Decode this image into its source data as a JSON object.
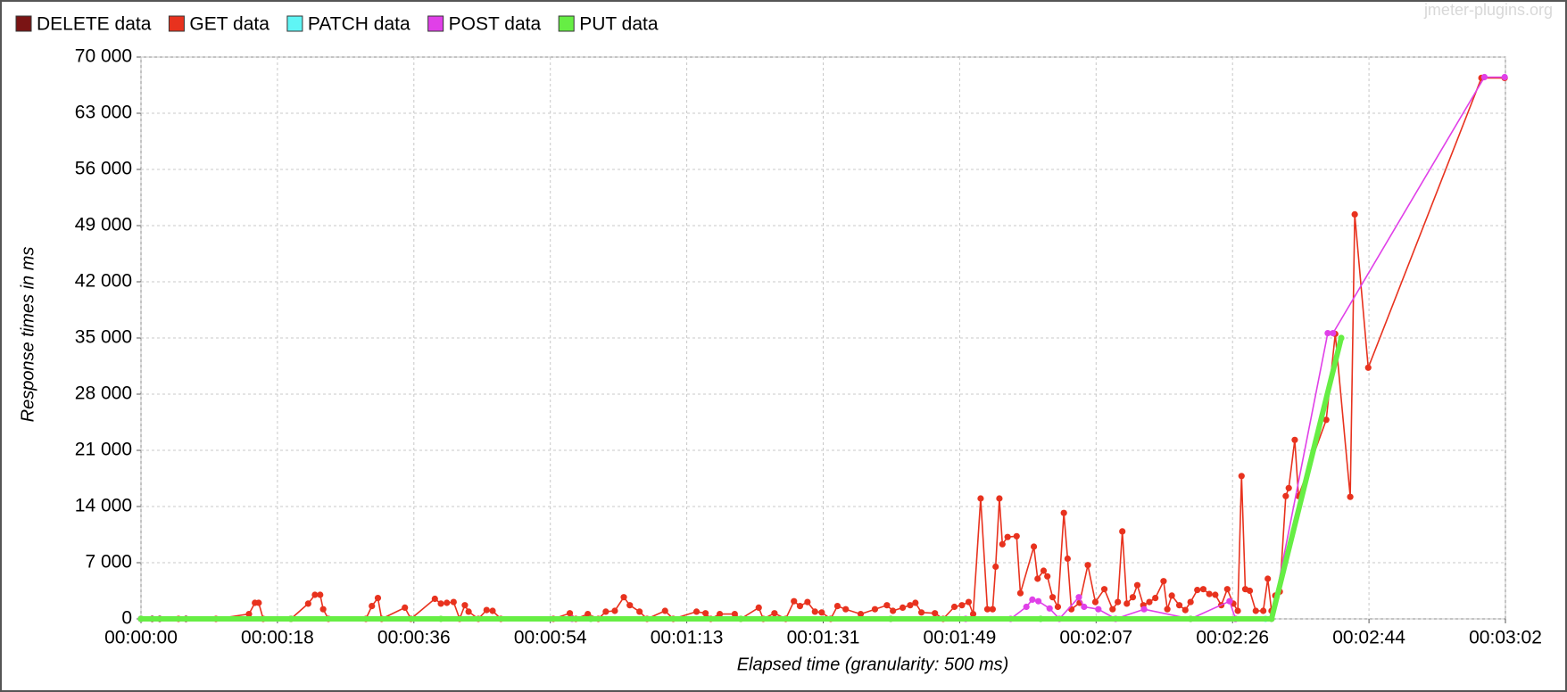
{
  "chart_data": {
    "type": "line",
    "watermark": "jmeter-plugins.org",
    "x_label": "Elapsed time (granularity: 500 ms)",
    "y_label": "Response times in ms",
    "grid": true,
    "legend": "top-left",
    "xlim": [
      0,
      182
    ],
    "xticks": [
      {
        "value": 0,
        "label": "00:00:00"
      },
      {
        "value": 18.2,
        "label": "00:00:18"
      },
      {
        "value": 36.4,
        "label": "00:00:36"
      },
      {
        "value": 54.6,
        "label": "00:00:54"
      },
      {
        "value": 72.8,
        "label": "00:01:13"
      },
      {
        "value": 91,
        "label": "00:01:31"
      },
      {
        "value": 109.2,
        "label": "00:01:49"
      },
      {
        "value": 127.4,
        "label": "00:02:07"
      },
      {
        "value": 145.6,
        "label": "00:02:26"
      },
      {
        "value": 163.8,
        "label": "00:02:44"
      },
      {
        "value": 182,
        "label": "00:03:02"
      }
    ],
    "ylim": [
      0,
      70000
    ],
    "yticks": [
      0,
      {
        "value": 7000,
        "label": "7 000"
      },
      {
        "value": 14000,
        "label": "14 000"
      },
      {
        "value": 21000,
        "label": "21 000"
      },
      {
        "value": 28000,
        "label": "28 000"
      },
      {
        "value": 35000,
        "label": "35 000"
      },
      {
        "value": 42000,
        "label": "42 000"
      },
      {
        "value": 49000,
        "label": "49 000"
      },
      {
        "value": 56000,
        "label": "56 000"
      },
      {
        "value": 63000,
        "label": "63 000"
      },
      {
        "value": 70000,
        "label": "70 000"
      }
    ],
    "series": [
      {
        "name": "DELETE data",
        "color": "#7a1414",
        "x": [
          0,
          1.5,
          2.5,
          6,
          20,
          146
        ],
        "values": [
          0,
          0,
          0,
          0,
          0,
          0
        ]
      },
      {
        "name": "GET data",
        "color": "#e8321e",
        "x": [
          0,
          5,
          10,
          14.4,
          15.2,
          15.7,
          16.3,
          20,
          22.3,
          23.2,
          23.9,
          24.3,
          25,
          30,
          30.8,
          31.6,
          32.1,
          35.2,
          36,
          39.2,
          40,
          40.8,
          41.7,
          42.5,
          43.2,
          43.7,
          45,
          46.1,
          46.9,
          48,
          55,
          57.2,
          58,
          59.6,
          61,
          62,
          63.2,
          64.4,
          65.2,
          66.5,
          67.5,
          69.9,
          71,
          74.1,
          75.3,
          76,
          77.2,
          79.2,
          80,
          82.4,
          83,
          84.5,
          86,
          87.1,
          87.9,
          88.9,
          89.9,
          90.8,
          92,
          92.9,
          94,
          96,
          97.9,
          99.5,
          100.3,
          101.6,
          102.6,
          103.3,
          104.1,
          105.9,
          107,
          108.5,
          109.5,
          110.4,
          111,
          112,
          112.9,
          113.6,
          114,
          114.5,
          114.9,
          115.6,
          116.8,
          117.3,
          119.1,
          119.6,
          120.4,
          120.9,
          121.6,
          122.3,
          123.1,
          123.6,
          124.1,
          125.2,
          126.3,
          127.3,
          128.5,
          129.6,
          130.3,
          130.9,
          131.5,
          132.3,
          132.9,
          133.7,
          134.5,
          135.3,
          136.4,
          136.9,
          137.5,
          138.5,
          139.3,
          140,
          140.9,
          141.7,
          142.5,
          143.3,
          144.1,
          144.9,
          145.7,
          146.3,
          146.8,
          147.3,
          147.9,
          148.7,
          149.7,
          150.3,
          150.8,
          151.3,
          151.9,
          152.7,
          153.1,
          153.9,
          154.4,
          158.1,
          159.3,
          161.3,
          161.9,
          163.7,
          178.8,
          181.9
        ],
        "values": [
          0,
          0,
          0,
          600,
          2000,
          2000,
          0,
          0,
          1900,
          3000,
          3000,
          1200,
          0,
          0,
          1600,
          2600,
          0,
          1400,
          0,
          2500,
          1900,
          2000,
          2100,
          0,
          1700,
          900,
          0,
          1100,
          1000,
          0,
          0,
          700,
          0,
          600,
          0,
          900,
          1000,
          2700,
          1700,
          900,
          0,
          1000,
          0,
          900,
          700,
          0,
          600,
          600,
          0,
          1400,
          0,
          700,
          0,
          2200,
          1600,
          2100,
          900,
          800,
          0,
          1600,
          1200,
          600,
          1200,
          1700,
          1000,
          1400,
          1700,
          2000,
          800,
          700,
          0,
          1500,
          1700,
          2100,
          600,
          15000,
          1200,
          1200,
          6500,
          15000,
          9300,
          10200,
          10300,
          3200,
          9000,
          5000,
          6000,
          5300,
          2700,
          1500,
          13200,
          7500,
          1200,
          2000,
          6700,
          2100,
          3700,
          1200,
          2100,
          10900,
          1900,
          2700,
          4200,
          1700,
          2100,
          2600,
          4700,
          1200,
          2900,
          1700,
          1100,
          2100,
          3600,
          3700,
          3100,
          3000,
          1700,
          3700,
          1900,
          1000,
          17800,
          3700,
          3500,
          1000,
          1000,
          5000,
          1000,
          2900,
          3400,
          15300,
          16300,
          22300,
          15300,
          24800,
          35500,
          15200,
          50400,
          31300,
          67400,
          67400
        ]
      },
      {
        "name": "PATCH data",
        "color": "#5ff5f5",
        "x": [
          0,
          60,
          120,
          150
        ],
        "values": [
          0,
          0,
          0,
          0
        ]
      },
      {
        "name": "POST data",
        "color": "#e040e8",
        "x": [
          0,
          57.5,
          100,
          110,
          116,
          118.1,
          118.9,
          119.7,
          121.2,
          122.5,
          125.1,
          125.8,
          127.7,
          130,
          133.8,
          140,
          145.2,
          146,
          150.8,
          158.3,
          159,
          179.2,
          181.9
        ],
        "values": [
          0,
          0,
          0,
          0,
          0,
          1500,
          2400,
          2200,
          1300,
          0,
          2700,
          1500,
          1200,
          0,
          1200,
          0,
          2200,
          0,
          0,
          35600,
          35600,
          67500,
          67500
        ]
      },
      {
        "name": "PUT data",
        "color": "#66ee44",
        "x": [
          0,
          20,
          40,
          60,
          80,
          100,
          120,
          140,
          150.8,
          160.1
        ],
        "values": [
          0,
          0,
          0,
          0,
          0,
          0,
          0,
          0,
          0,
          35000
        ]
      }
    ]
  }
}
